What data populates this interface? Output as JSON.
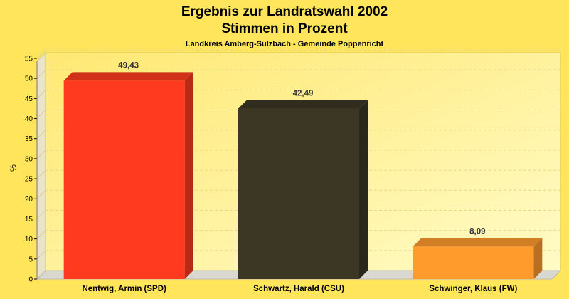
{
  "chart_data": {
    "type": "bar",
    "title": "Ergebnis zur Landratswahl 2002",
    "title2": "Stimmen in Prozent",
    "subtitle": "Landkreis Amberg-Sulzbach - Gemeinde Poppenricht",
    "ylabel": "%",
    "xlabel": "",
    "ylim": [
      0,
      55
    ],
    "yticks": [
      0,
      5,
      10,
      15,
      20,
      25,
      30,
      35,
      40,
      45,
      50,
      55
    ],
    "grid": true,
    "legend": "none",
    "categories": [
      "Nentwig, Armin (SPD)",
      "Schwartz, Harald (CSU)",
      "Schwinger, Klaus (FW)"
    ],
    "values": [
      49.43,
      42.49,
      8.09
    ],
    "value_labels": [
      "49,43",
      "42,49",
      "8,09"
    ],
    "colors": [
      "#FF3A1E",
      "#3B3724",
      "#FF9A2C"
    ]
  },
  "colors": {
    "background": "#FFE55C",
    "plot_background": "#FFF5A3",
    "grid": "#E8D98A"
  }
}
